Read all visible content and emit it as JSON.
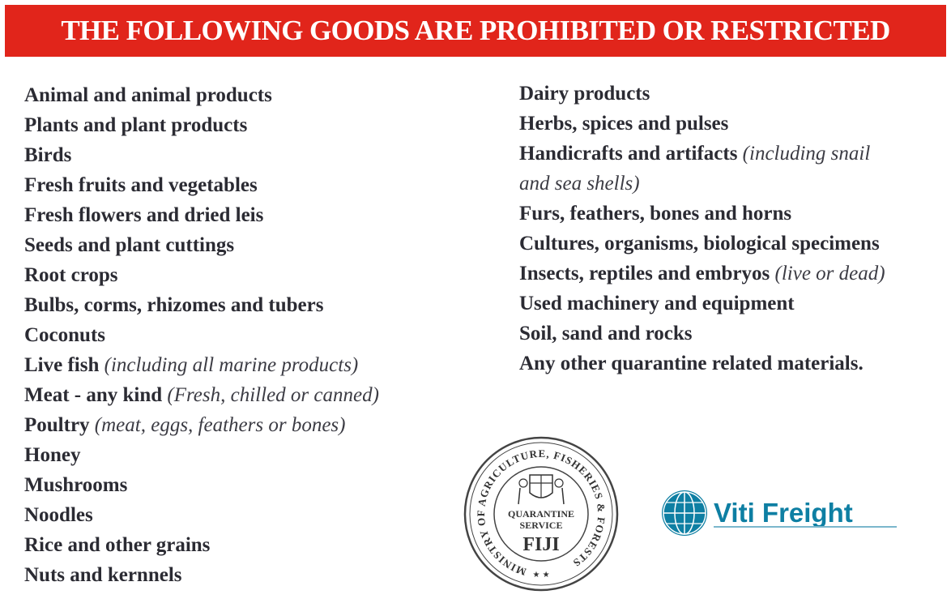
{
  "banner": {
    "title": "THE FOLLOWING GOODS ARE PROHIBITED OR RESTRICTED"
  },
  "left_items": [
    {
      "text": "Animal and animal products",
      "note": ""
    },
    {
      "text": "Plants and plant products",
      "note": ""
    },
    {
      "text": "Birds",
      "note": ""
    },
    {
      "text": "Fresh fruits and vegetables",
      "note": ""
    },
    {
      "text": "Fresh flowers and dried leis",
      "note": ""
    },
    {
      "text": "Seeds and plant cuttings",
      "note": ""
    },
    {
      "text": "Root crops",
      "note": ""
    },
    {
      "text": "Bulbs, corms, rhizomes and tubers",
      "note": ""
    },
    {
      "text": "Coconuts",
      "note": ""
    },
    {
      "text": "Live fish",
      "note": "(including all marine products)"
    },
    {
      "text": "Meat - any kind",
      "note": "(Fresh, chilled or canned)"
    },
    {
      "text": "Poultry",
      "note": "(meat, eggs, feathers or bones)"
    },
    {
      "text": "Honey",
      "note": ""
    },
    {
      "text": "Mushrooms",
      "note": ""
    },
    {
      "text": "Noodles",
      "note": ""
    },
    {
      "text": "Rice and other grains",
      "note": ""
    },
    {
      "text": "Nuts and kernnels",
      "note": ""
    }
  ],
  "right_items": [
    {
      "text": "Dairy products",
      "note": ""
    },
    {
      "text": "Herbs, spices and pulses",
      "note": ""
    },
    {
      "text": "Handicrafts and artifacts",
      "note": "(including snail"
    },
    {
      "text": "",
      "note": "and sea shells)"
    },
    {
      "text": "Furs, feathers, bones and horns",
      "note": ""
    },
    {
      "text": "Cultures, organisms, biological specimens",
      "note": ""
    },
    {
      "text": "Insects, reptiles and embryos",
      "note": "(live or dead)"
    },
    {
      "text": "Used machinery and equipment",
      "note": ""
    },
    {
      "text": "Soil, sand and rocks",
      "note": ""
    },
    {
      "text": "Any other quarantine related materials.",
      "note": ""
    }
  ],
  "seal": {
    "ring_text": "MINISTRY OF AGRICULTURE, FISHERIES & FORESTS",
    "line1": "QUARANTINE",
    "line2": "SERVICE",
    "country": "FIJI",
    "stars": "★ ★"
  },
  "logo": {
    "name": "Viti Freight",
    "color": "#0e7fa3"
  },
  "colors": {
    "banner": "#e1251b",
    "text": "#2b2b33"
  }
}
